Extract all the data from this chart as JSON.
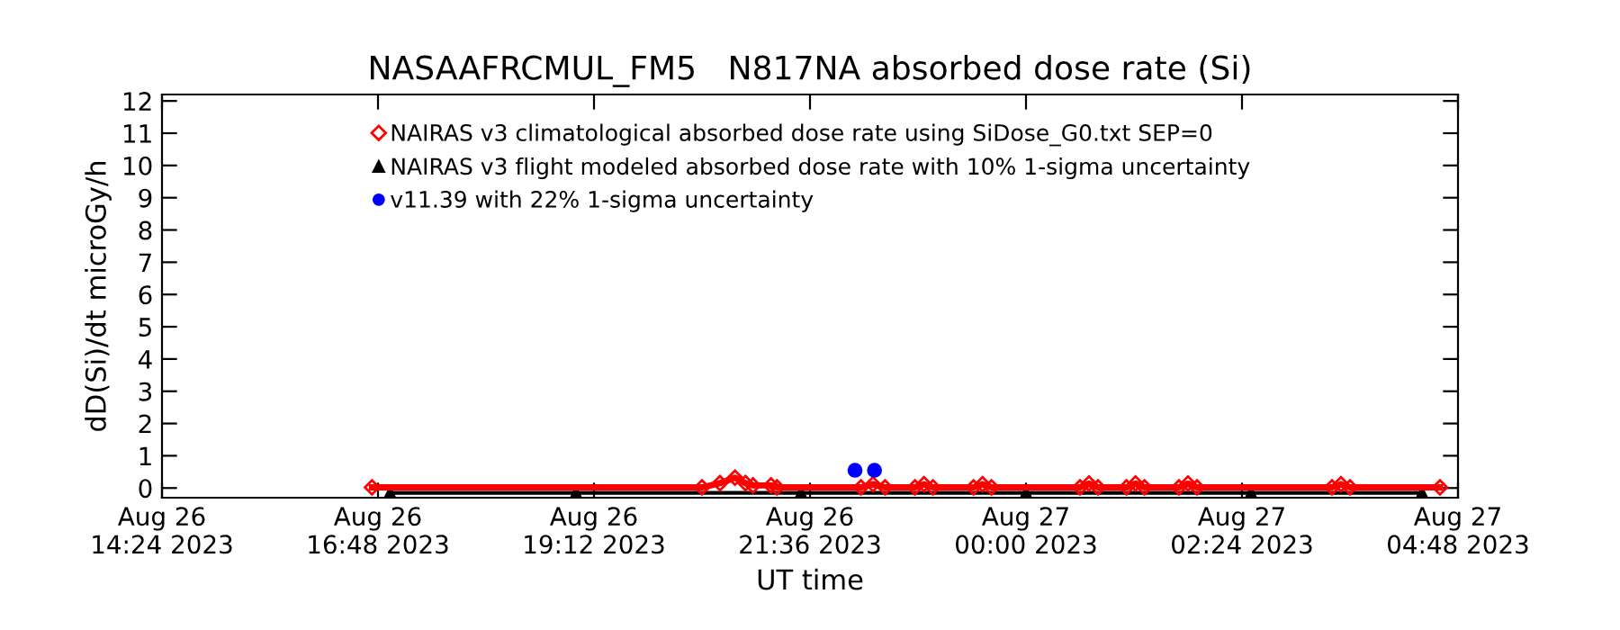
{
  "chart_data": {
    "type": "line",
    "title": "NASAAFRCMUL_FM5   N817NA absorbed dose rate (Si)",
    "xlabel": "UT time",
    "ylabel": "dD(Si)/dt microGy/h",
    "xlim": [
      "2023-08-26T14:24",
      "2023-08-27T04:48"
    ],
    "xticks": [
      {
        "value": "2023-08-26T14:24",
        "label": "Aug 26\n14:24 2023"
      },
      {
        "value": "2023-08-26T16:48",
        "label": "Aug 26\n16:48 2023"
      },
      {
        "value": "2023-08-26T19:12",
        "label": "Aug 26\n19:12 2023"
      },
      {
        "value": "2023-08-26T21:36",
        "label": "Aug 26\n21:36 2023"
      },
      {
        "value": "2023-08-27T00:00",
        "label": "Aug 27\n00:00 2023"
      },
      {
        "value": "2023-08-27T02:24",
        "label": "Aug 27\n02:24 2023"
      },
      {
        "value": "2023-08-27T04:48",
        "label": "Aug 27\n04:48 2023"
      }
    ],
    "ylim": [
      -0.3,
      12.2
    ],
    "yticks": [
      0,
      1,
      2,
      3,
      4,
      5,
      6,
      7,
      8,
      9,
      10,
      11,
      12
    ],
    "legend": "top",
    "series": [
      {
        "name": "NAIRAS v3 flight modeled absorbed dose rate with 10% 1-sigma uncertainty",
        "color": "#000000",
        "marker": "triangle",
        "x": [
          "2023-08-26T16:56",
          "2023-08-26T19:00",
          "2023-08-26T21:30",
          "2023-08-27T00:00",
          "2023-08-27T02:30",
          "2023-08-27T04:24"
        ],
        "values": [
          -0.15,
          -0.15,
          -0.15,
          -0.15,
          -0.15,
          -0.15
        ]
      },
      {
        "name": "NAIRAS v3 climatological absorbed dose rate using SiDose_G0.txt SEP=0",
        "color": "#ff0000",
        "marker": "diamond",
        "x": [
          "2023-08-26T16:44",
          "2023-08-26T20:24",
          "2023-08-26T20:36",
          "2023-08-26T20:46",
          "2023-08-26T20:53",
          "2023-08-26T20:58",
          "2023-08-26T21:10",
          "2023-08-26T21:14",
          "2023-08-26T22:10",
          "2023-08-26T22:18",
          "2023-08-26T22:26",
          "2023-08-26T22:46",
          "2023-08-26T22:52",
          "2023-08-26T22:58",
          "2023-08-26T23:25",
          "2023-08-26T23:31",
          "2023-08-26T23:37",
          "2023-08-27T00:36",
          "2023-08-27T00:42",
          "2023-08-27T00:48",
          "2023-08-27T01:07",
          "2023-08-27T01:13",
          "2023-08-27T01:19",
          "2023-08-27T01:42",
          "2023-08-27T01:48",
          "2023-08-27T01:54",
          "2023-08-27T03:24",
          "2023-08-27T03:30",
          "2023-08-27T03:36",
          "2023-08-27T04:36"
        ],
        "values": [
          0.02,
          0.02,
          0.15,
          0.32,
          0.15,
          0.08,
          0.08,
          0.02,
          0.02,
          0.12,
          0.02,
          0.02,
          0.12,
          0.02,
          0.02,
          0.12,
          0.02,
          0.02,
          0.14,
          0.02,
          0.02,
          0.14,
          0.02,
          0.02,
          0.14,
          0.02,
          0.02,
          0.12,
          0.02,
          0.02
        ]
      },
      {
        "name": "v11.39 with 22% 1-sigma uncertainty",
        "color": "#0000ff",
        "marker": "circle",
        "type": "scatter",
        "x": [
          "2023-08-26T22:06",
          "2023-08-26T22:19"
        ],
        "values": [
          0.55,
          0.55
        ],
        "errors": [
          0.12,
          0.12
        ]
      }
    ]
  }
}
